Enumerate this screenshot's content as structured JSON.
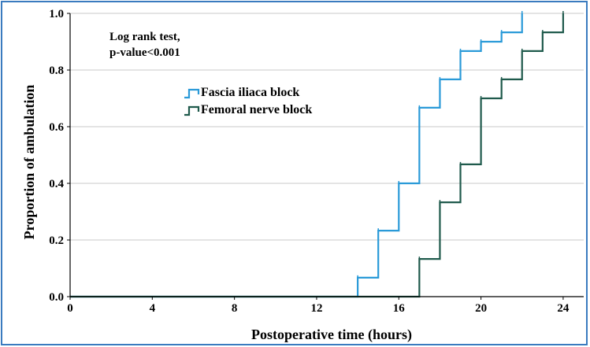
{
  "chart_data": {
    "type": "line",
    "step": true,
    "xlabel": "Postoperative time (hours)",
    "ylabel": "Proportion of ambulation",
    "xlim": [
      0,
      25
    ],
    "ylim": [
      0,
      1.0
    ],
    "xticks": [
      0,
      4,
      8,
      12,
      16,
      20,
      24
    ],
    "yticks": [
      0.0,
      0.2,
      0.4,
      0.6,
      0.8,
      1.0
    ],
    "ytick_labels": [
      "0.0",
      "0.2",
      "0.4",
      "0.6",
      "0.8",
      "1.0"
    ],
    "grid": "horizontal",
    "annotation": [
      "Log rank test,",
      "p-value<0.001"
    ],
    "legend_position": "upper-left-center",
    "series": [
      {
        "name": "Fascia iliaca block",
        "color": "#2a9ad8",
        "x": [
          14,
          15,
          16,
          17,
          18,
          19,
          20,
          21,
          22
        ],
        "y": [
          0.067,
          0.233,
          0.4,
          0.667,
          0.767,
          0.867,
          0.9,
          0.933,
          1.0
        ]
      },
      {
        "name": "Femoral nerve block",
        "color": "#1f5a4c",
        "x": [
          17,
          18,
          19,
          20,
          21,
          22,
          23,
          24
        ],
        "y": [
          0.133,
          0.333,
          0.467,
          0.7,
          0.767,
          0.867,
          0.933,
          1.0
        ]
      }
    ]
  }
}
